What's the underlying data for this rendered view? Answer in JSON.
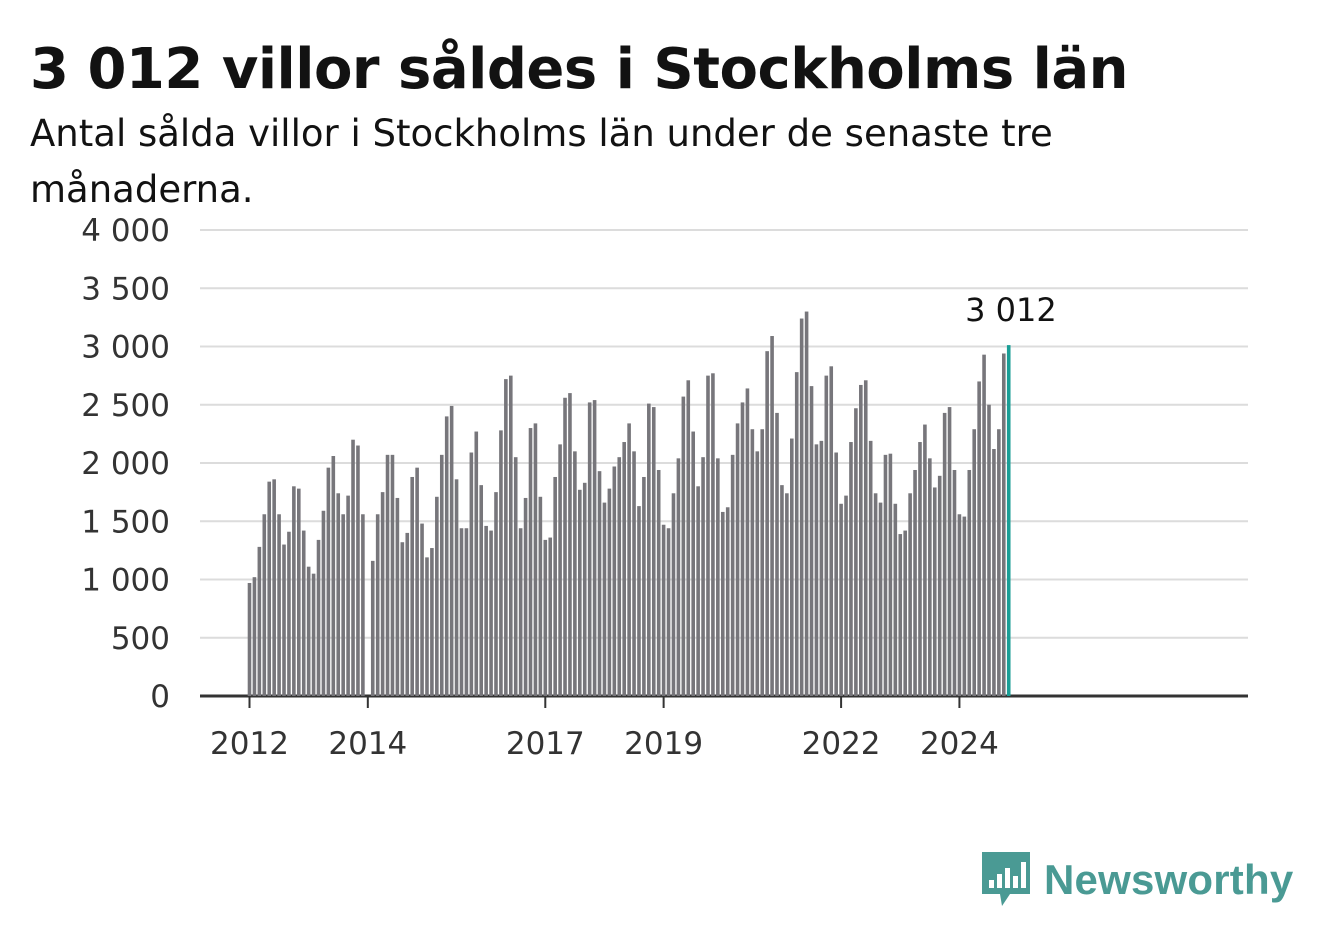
{
  "header": {
    "title": "3 012 villor såldes i Stockholms län",
    "subtitle": "Antal sålda villor i Stockholms län under de senaste tre månaderna."
  },
  "colors": {
    "bar": "#77767b",
    "highlight": "#1a9e96",
    "grid": "#dcdcdc",
    "axis": "#333333",
    "brand": "#4a9a94"
  },
  "chart_data": {
    "type": "bar",
    "title": "3 012 villor såldes i Stockholms län",
    "subtitle": "Antal sålda villor i Stockholms län under de senaste tre månaderna.",
    "xlabel": "",
    "ylabel": "",
    "ylim": [
      0,
      4000
    ],
    "yticks": [
      0,
      500,
      1000,
      1500,
      2000,
      2500,
      3000,
      3500,
      4000
    ],
    "ytick_labels": [
      "0",
      "500",
      "1 000",
      "1 500",
      "2 000",
      "2 500",
      "3 000",
      "3 500",
      "4 000"
    ],
    "xticks": [
      "2012",
      "2014",
      "2017",
      "2019",
      "2022",
      "2024"
    ],
    "grid": true,
    "legend": "none",
    "first_period": "2012-01",
    "frequency": "monthly",
    "values": [
      970,
      1020,
      1280,
      1560,
      1840,
      1860,
      1560,
      1300,
      1410,
      1800,
      1780,
      1420,
      1110,
      1050,
      1340,
      1590,
      1960,
      2060,
      1740,
      1560,
      1720,
      2200,
      2150,
      1560,
      0,
      1160,
      1560,
      1750,
      2070,
      2070,
      1700,
      1320,
      1400,
      1880,
      1960,
      1480,
      1190,
      1270,
      1710,
      2070,
      2400,
      2490,
      1860,
      1440,
      1440,
      2090,
      2270,
      1810,
      1460,
      1420,
      1750,
      2280,
      2720,
      2750,
      2050,
      1440,
      1700,
      2300,
      2340,
      1710,
      1340,
      1360,
      1880,
      2160,
      2560,
      2600,
      2100,
      1770,
      1830,
      2520,
      2540,
      1930,
      1660,
      1780,
      1970,
      2050,
      2180,
      2340,
      2100,
      1630,
      1880,
      2510,
      2480,
      1940,
      1470,
      1440,
      1740,
      2040,
      2570,
      2710,
      2270,
      1800,
      2050,
      2750,
      2770,
      2040,
      1580,
      1620,
      2070,
      2340,
      2520,
      2640,
      2290,
      2100,
      2290,
      2960,
      3090,
      2430,
      1810,
      1740,
      2210,
      2780,
      3240,
      3300,
      2660,
      2160,
      2190,
      2750,
      2830,
      2090,
      1650,
      1720,
      2180,
      2470,
      2670,
      2710,
      2190,
      1740,
      1660,
      2070,
      2080,
      1650,
      1390,
      1420,
      1740,
      1940,
      2180,
      2330,
      2040,
      1790,
      1890,
      2430,
      2480,
      1940,
      1560,
      1540,
      1940,
      2290,
      2700,
      2930,
      2500,
      2120,
      2290,
      2940,
      3012
    ],
    "highlight_last": true,
    "last_value_label": "3 012"
  },
  "branding": {
    "logo_text": "Newsworthy",
    "logo_icon": "bar-chart-speech-bubble-icon"
  }
}
